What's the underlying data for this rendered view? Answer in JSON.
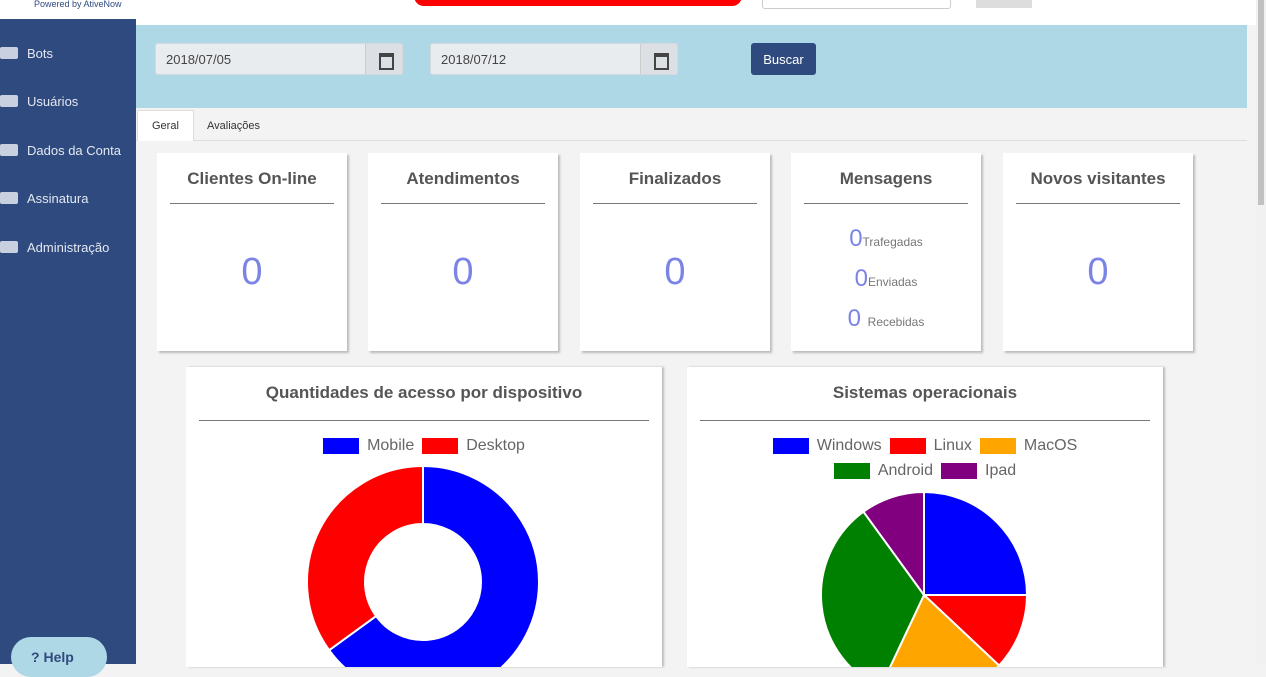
{
  "brand": {
    "powered_by": "Powered by AtiveNow"
  },
  "sidebar": {
    "items": [
      "Bots",
      "Usuários",
      "Dados da Conta",
      "Assinatura",
      "Administração"
    ],
    "help": "Help"
  },
  "filters": {
    "start_date": "2018/07/05",
    "end_date": "2018/07/12",
    "button": "Buscar"
  },
  "tabs": [
    "Geral",
    "Avaliações"
  ],
  "cards": [
    {
      "title": "Clientes On-line",
      "value": 0
    },
    {
      "title": "Atendimentos",
      "value": 0
    },
    {
      "title": "Finalizados",
      "value": 0
    },
    {
      "title": "Mensagens",
      "items": [
        {
          "value": 0,
          "label": "Trafegadas"
        },
        {
          "value": 0,
          "label": "Enviadas"
        },
        {
          "value": 0,
          "label": "Recebidas"
        }
      ]
    },
    {
      "title": "Novos visitantes",
      "value": 0
    }
  ],
  "charts": [
    {
      "type": "doughnut",
      "title": "Quantidades de acesso por dispositivo",
      "categories": [
        "Mobile",
        "Desktop"
      ],
      "values": [
        65,
        35
      ],
      "colors": [
        "#0000ff",
        "#ff0000"
      ]
    },
    {
      "type": "pie",
      "title": "Sistemas operacionais",
      "categories": [
        "Windows",
        "Linux",
        "MacOS",
        "Android",
        "Ipad"
      ],
      "values": [
        25,
        12,
        20,
        33,
        10
      ],
      "colors": [
        "#0000ff",
        "#ff0000",
        "#ffa500",
        "#008000",
        "#800080"
      ]
    }
  ]
}
